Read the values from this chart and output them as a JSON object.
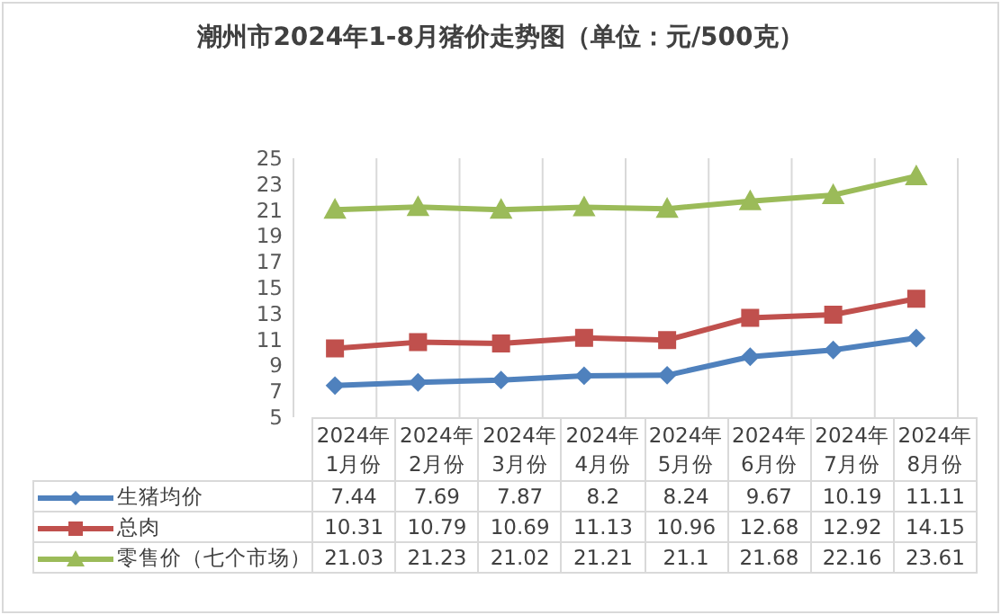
{
  "chart_data": {
    "type": "line",
    "title": "潮州市2024年1-8月猪价走势图（单位：元/500克）",
    "categories": [
      "2024年1月份",
      "2024年2月份",
      "2024年3月份",
      "2024年4月份",
      "2024年5月份",
      "2024年6月份",
      "2024年7月份",
      "2024年8月份"
    ],
    "series": [
      {
        "name": "生猪均价",
        "color": "#4f81bd",
        "marker": "diamond",
        "values": [
          7.44,
          7.69,
          7.87,
          8.2,
          8.24,
          9.67,
          10.19,
          11.11
        ]
      },
      {
        "name": "总肉",
        "color": "#c0504d",
        "marker": "square",
        "values": [
          10.31,
          10.79,
          10.69,
          11.13,
          10.96,
          12.68,
          12.92,
          14.15
        ]
      },
      {
        "name": "零售价（七个市场）",
        "color": "#9bbb59",
        "marker": "triangle",
        "values": [
          21.03,
          21.23,
          21.02,
          21.21,
          21.1,
          21.68,
          22.16,
          23.61
        ]
      }
    ],
    "ylim": [
      5,
      25
    ],
    "yticks": [
      5,
      7,
      9,
      11,
      13,
      15,
      17,
      19,
      21,
      23,
      25
    ],
    "grid": "x",
    "legend": "bottom",
    "data_labels": true
  }
}
